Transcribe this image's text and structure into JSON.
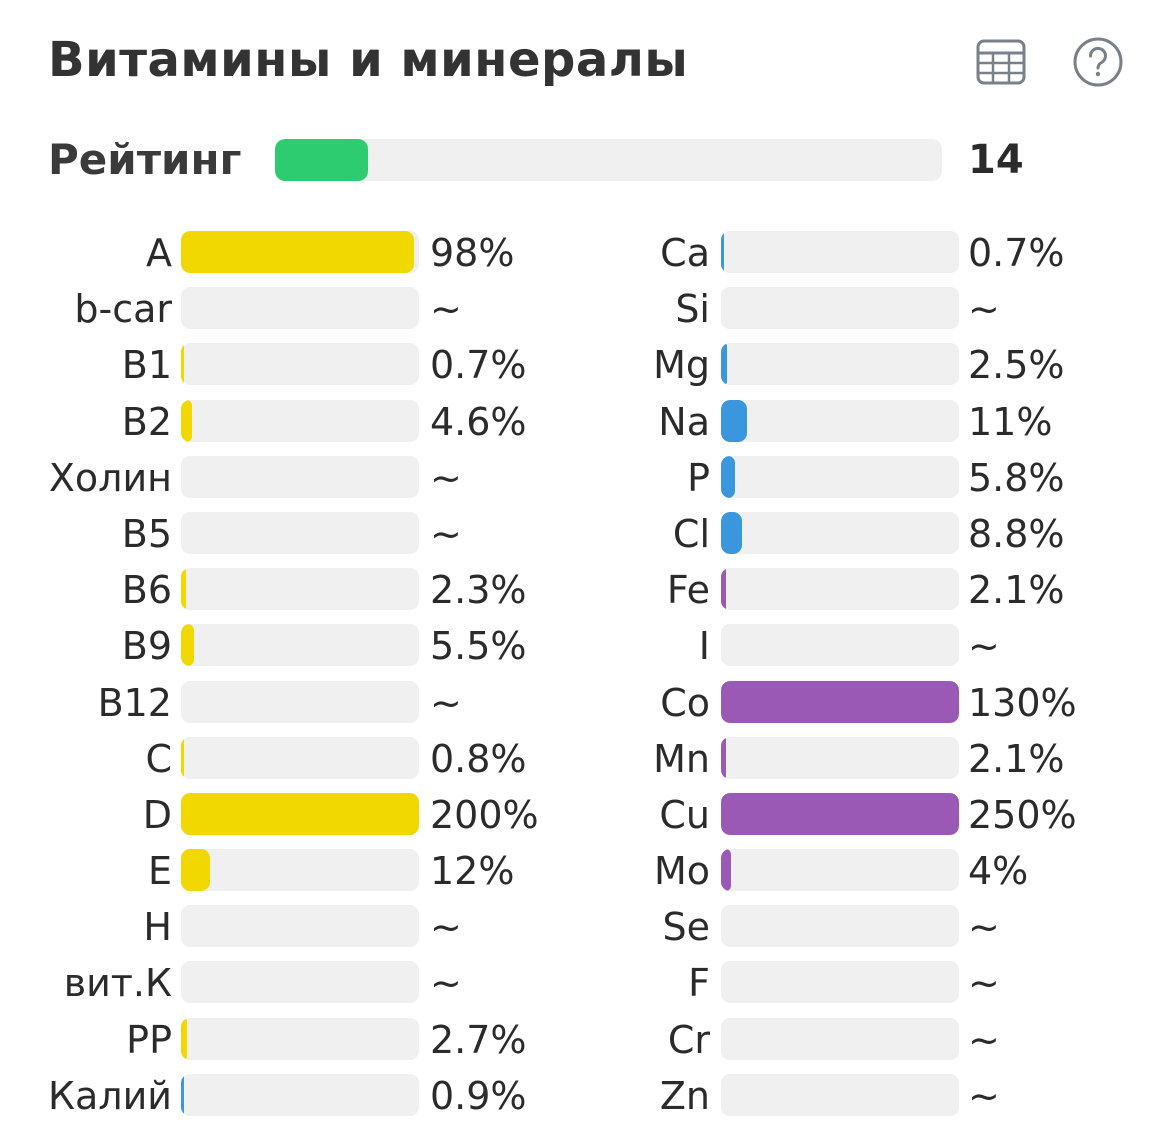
{
  "header": {
    "title": "Витамины и минералы",
    "table_icon": "table-grid-icon",
    "help_icon": "question-circle-icon"
  },
  "rating": {
    "label": "Рейтинг",
    "value": "14",
    "fill_fraction": 0.14,
    "color": "#2ecc71"
  },
  "colors": {
    "vitamin": "#f0d800",
    "blue": "#3a96dd",
    "purple": "#9b59b6",
    "track": "#f0f0f0"
  },
  "vitamins": [
    {
      "label": "A",
      "value": "98%",
      "percent": 98,
      "color": "vitamin"
    },
    {
      "label": "b-car",
      "value": "~",
      "percent": 0,
      "color": "vitamin"
    },
    {
      "label": "B1",
      "value": "0.7%",
      "percent": 0.7,
      "color": "vitamin"
    },
    {
      "label": "B2",
      "value": "4.6%",
      "percent": 4.6,
      "color": "vitamin"
    },
    {
      "label": "Холин",
      "value": "~",
      "percent": 0,
      "color": "vitamin"
    },
    {
      "label": "B5",
      "value": "~",
      "percent": 0,
      "color": "vitamin"
    },
    {
      "label": "B6",
      "value": "2.3%",
      "percent": 2.3,
      "color": "vitamin"
    },
    {
      "label": "B9",
      "value": "5.5%",
      "percent": 5.5,
      "color": "vitamin"
    },
    {
      "label": "B12",
      "value": "~",
      "percent": 0,
      "color": "vitamin"
    },
    {
      "label": "C",
      "value": "0.8%",
      "percent": 0.8,
      "color": "vitamin"
    },
    {
      "label": "D",
      "value": "200%",
      "percent": 200,
      "color": "vitamin"
    },
    {
      "label": "E",
      "value": "12%",
      "percent": 12,
      "color": "vitamin"
    },
    {
      "label": "H",
      "value": "~",
      "percent": 0,
      "color": "vitamin"
    },
    {
      "label": "вит.К",
      "value": "~",
      "percent": 0,
      "color": "vitamin"
    },
    {
      "label": "PP",
      "value": "2.7%",
      "percent": 2.7,
      "color": "vitamin"
    },
    {
      "label": "Калий",
      "value": "0.9%",
      "percent": 0.9,
      "color": "blue"
    }
  ],
  "minerals": [
    {
      "label": "Ca",
      "value": "0.7%",
      "percent": 0.7,
      "color": "blue"
    },
    {
      "label": "Si",
      "value": "~",
      "percent": 0,
      "color": "blue"
    },
    {
      "label": "Mg",
      "value": "2.5%",
      "percent": 2.5,
      "color": "blue"
    },
    {
      "label": "Na",
      "value": "11%",
      "percent": 11,
      "color": "blue"
    },
    {
      "label": "P",
      "value": "5.8%",
      "percent": 5.8,
      "color": "blue"
    },
    {
      "label": "Cl",
      "value": "8.8%",
      "percent": 8.8,
      "color": "blue"
    },
    {
      "label": "Fe",
      "value": "2.1%",
      "percent": 2.1,
      "color": "purple"
    },
    {
      "label": "I",
      "value": "~",
      "percent": 0,
      "color": "purple"
    },
    {
      "label": "Co",
      "value": "130%",
      "percent": 130,
      "color": "purple"
    },
    {
      "label": "Mn",
      "value": "2.1%",
      "percent": 2.1,
      "color": "purple"
    },
    {
      "label": "Cu",
      "value": "250%",
      "percent": 250,
      "color": "purple"
    },
    {
      "label": "Mo",
      "value": "4%",
      "percent": 4,
      "color": "purple"
    },
    {
      "label": "Se",
      "value": "~",
      "percent": 0,
      "color": "purple"
    },
    {
      "label": "F",
      "value": "~",
      "percent": 0,
      "color": "purple"
    },
    {
      "label": "Cr",
      "value": "~",
      "percent": 0,
      "color": "purple"
    },
    {
      "label": "Zn",
      "value": "~",
      "percent": 0,
      "color": "purple"
    }
  ]
}
